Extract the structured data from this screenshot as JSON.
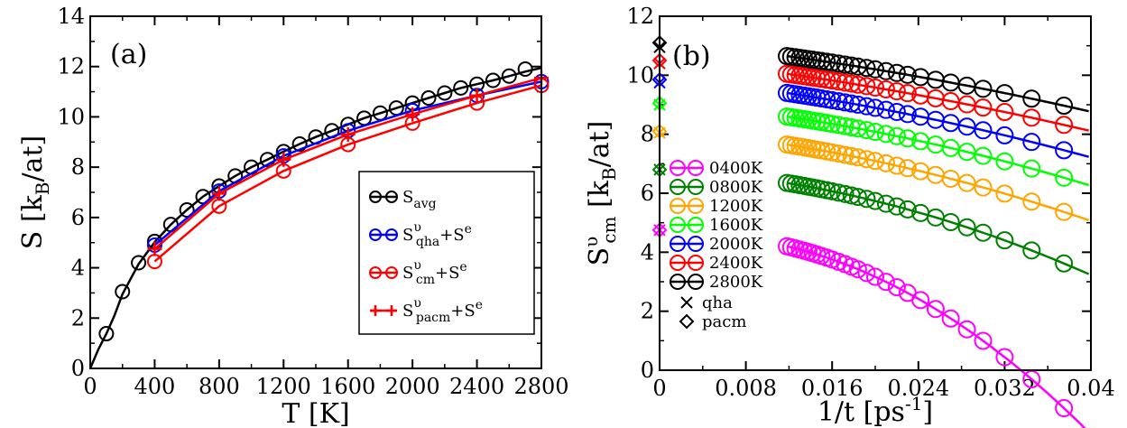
{
  "chart_data": [
    {
      "panel_label": "(a)",
      "type": "line",
      "xlabel": {
        "base": "T [K]"
      },
      "ylabel": {
        "pre": "S [k",
        "sub": "B",
        "post": "/at]"
      },
      "xlim": [
        0,
        2800
      ],
      "ylim": [
        0,
        14
      ],
      "x_ticks": [
        0,
        400,
        800,
        1200,
        1600,
        2000,
        2400,
        2800
      ],
      "x_tick_labels": [
        "0",
        "400",
        "800",
        "1200",
        "1600",
        "2000",
        "2400",
        "2800"
      ],
      "y_ticks": [
        0,
        2,
        4,
        6,
        8,
        10,
        12,
        14
      ],
      "y_tick_labels": [
        "0",
        "2",
        "4",
        "6",
        "8",
        "10",
        "12",
        "14"
      ],
      "legend_position": "center-right",
      "series": [
        {
          "key": "avg",
          "label": {
            "base": "S",
            "sub": "avg"
          },
          "color": "#000000",
          "marker": "circle",
          "line_x": [
            0,
            50,
            100,
            150,
            200,
            300,
            400,
            500,
            600,
            700,
            800,
            900,
            1000,
            1100,
            1200,
            1300,
            1400,
            1500,
            1600,
            1700,
            1800,
            1900,
            2000,
            2100,
            2200,
            2300,
            2400,
            2500,
            2600,
            2700,
            2800
          ],
          "line_y": [
            0,
            0.75,
            1.38,
            2.1,
            2.95,
            4.15,
            5.02,
            5.72,
            6.3,
            6.83,
            7.25,
            7.65,
            8.0,
            8.3,
            8.62,
            8.92,
            9.2,
            9.45,
            9.7,
            9.95,
            10.15,
            10.35,
            10.55,
            10.75,
            10.95,
            11.15,
            11.3,
            11.45,
            11.62,
            11.8,
            11.95
          ],
          "marker_x": [
            100,
            200,
            300,
            400,
            500,
            600,
            700,
            800,
            900,
            1000,
            1100,
            1200,
            1300,
            1400,
            1500,
            1600,
            1700,
            1800,
            1900,
            2000,
            2100,
            2200,
            2300,
            2400,
            2500,
            2600,
            2700
          ],
          "marker_y": [
            1.38,
            3.05,
            4.2,
            5.05,
            5.72,
            6.3,
            6.83,
            7.25,
            7.65,
            8.0,
            8.3,
            8.62,
            8.92,
            9.2,
            9.45,
            9.7,
            9.95,
            10.15,
            10.35,
            10.55,
            10.75,
            10.95,
            11.15,
            11.3,
            11.45,
            11.62,
            11.9
          ]
        },
        {
          "key": "qha",
          "label": {
            "base": "S",
            "sup": "υ",
            "sub": "qha",
            "tail": "+S",
            "tailsup": "e"
          },
          "color": "#0000ff",
          "marker": "circle",
          "line_x": [
            400,
            800,
            1200,
            1600,
            2000,
            2400,
            2800
          ],
          "line_y": [
            4.9,
            7.05,
            8.45,
            9.45,
            10.25,
            10.85,
            11.4
          ],
          "marker_x": [
            400,
            800,
            1200,
            1600,
            2000,
            2400,
            2800
          ],
          "marker_y": [
            4.9,
            7.05,
            8.45,
            9.45,
            10.25,
            10.85,
            11.4
          ]
        },
        {
          "key": "cm",
          "label": {
            "base": "S",
            "sup": "υ",
            "sub": "cm",
            "tail": "+S",
            "tailsup": "e"
          },
          "color": "#ff0000",
          "marker": "circle",
          "line_x": [
            400,
            800,
            1200,
            1600,
            2000,
            2400,
            2800
          ],
          "line_y": [
            4.25,
            6.45,
            7.85,
            8.9,
            9.75,
            10.55,
            11.25
          ],
          "marker_x": [
            400,
            800,
            1200,
            1600,
            2000,
            2400,
            2800
          ],
          "marker_y": [
            4.25,
            6.45,
            7.85,
            8.9,
            9.75,
            10.55,
            11.25
          ]
        },
        {
          "key": "pacm",
          "label": {
            "base": "S",
            "sup": "υ",
            "sub": "pacm",
            "tail": "+S",
            "tailsup": "e"
          },
          "color": "#ff0000",
          "marker": "plus",
          "line_x": [
            400,
            800,
            1200,
            1600,
            2000,
            2400,
            2800
          ],
          "line_y": [
            4.75,
            6.95,
            8.3,
            9.3,
            10.1,
            10.85,
            11.55
          ],
          "marker_x": [
            400,
            800,
            1200,
            1600,
            2000,
            2400,
            2800
          ],
          "marker_y": [
            4.75,
            6.95,
            8.3,
            9.3,
            10.1,
            10.85,
            11.55
          ]
        }
      ]
    },
    {
      "panel_label": "(b)",
      "type": "scatter",
      "xlabel": {
        "pre": "1/t [ps",
        "sup": "-1",
        "post": "]"
      },
      "ylabel": {
        "pre": "S",
        "sup": "υ",
        "sub": "cm",
        "post": " [k",
        "sub2": "B",
        "post2": "/at]"
      },
      "xlim": [
        0,
        0.04
      ],
      "ylim": [
        0,
        12
      ],
      "x_ticks": [
        0,
        0.008,
        0.016,
        0.024,
        0.032,
        0.04
      ],
      "x_tick_labels": [
        "0",
        "0.008",
        "0.016",
        "0.024",
        "0.032",
        "0.04"
      ],
      "y_ticks": [
        0,
        2,
        4,
        6,
        8,
        10,
        12
      ],
      "y_tick_labels": [
        "0",
        "2",
        "4",
        "6",
        "8",
        "10",
        "12"
      ],
      "legend_position": "lower-left",
      "marker_x": [
        0.0118,
        0.0122,
        0.0126,
        0.013,
        0.0134,
        0.0138,
        0.0142,
        0.0146,
        0.015,
        0.0155,
        0.016,
        0.0166,
        0.0172,
        0.0178,
        0.0184,
        0.0192,
        0.02,
        0.021,
        0.022,
        0.023,
        0.0242,
        0.0256,
        0.027,
        0.0285,
        0.03,
        0.032,
        0.0345,
        0.0375
      ],
      "series": [
        {
          "name": "0400K",
          "color": "#ff00ff",
          "start": 4.2,
          "slope": 85,
          "curv": 500,
          "qha": 4.75,
          "pacm": 4.75
        },
        {
          "name": "0800K",
          "color": "#008000",
          "start": 6.35,
          "slope": 60,
          "curv": 180,
          "qha": 6.8,
          "pacm": 6.8
        },
        {
          "name": "1200K",
          "color": "#ffa500",
          "start": 7.65,
          "slope": 58,
          "curv": 120,
          "qha": 8.05,
          "pacm": 8.1
        },
        {
          "name": "1600K",
          "color": "#00ff00",
          "start": 8.6,
          "slope": 55,
          "curv": 100,
          "qha": 9.0,
          "pacm": 9.05
        },
        {
          "name": "2000K",
          "color": "#0000ff",
          "start": 9.4,
          "slope": 55,
          "curv": 80,
          "qha": 9.75,
          "pacm": 9.85
        },
        {
          "name": "2400K",
          "color": "#ff0000",
          "start": 10.05,
          "slope": 52,
          "curv": 60,
          "qha": 10.4,
          "pacm": 10.5
        },
        {
          "name": "2800K",
          "color": "#000000",
          "start": 10.65,
          "slope": 50,
          "curv": 60,
          "qha": 10.95,
          "pacm": 11.1
        }
      ],
      "extra_legend": [
        {
          "label": "qha",
          "marker": "x"
        },
        {
          "label": "pacm",
          "marker": "diamond"
        }
      ]
    }
  ]
}
